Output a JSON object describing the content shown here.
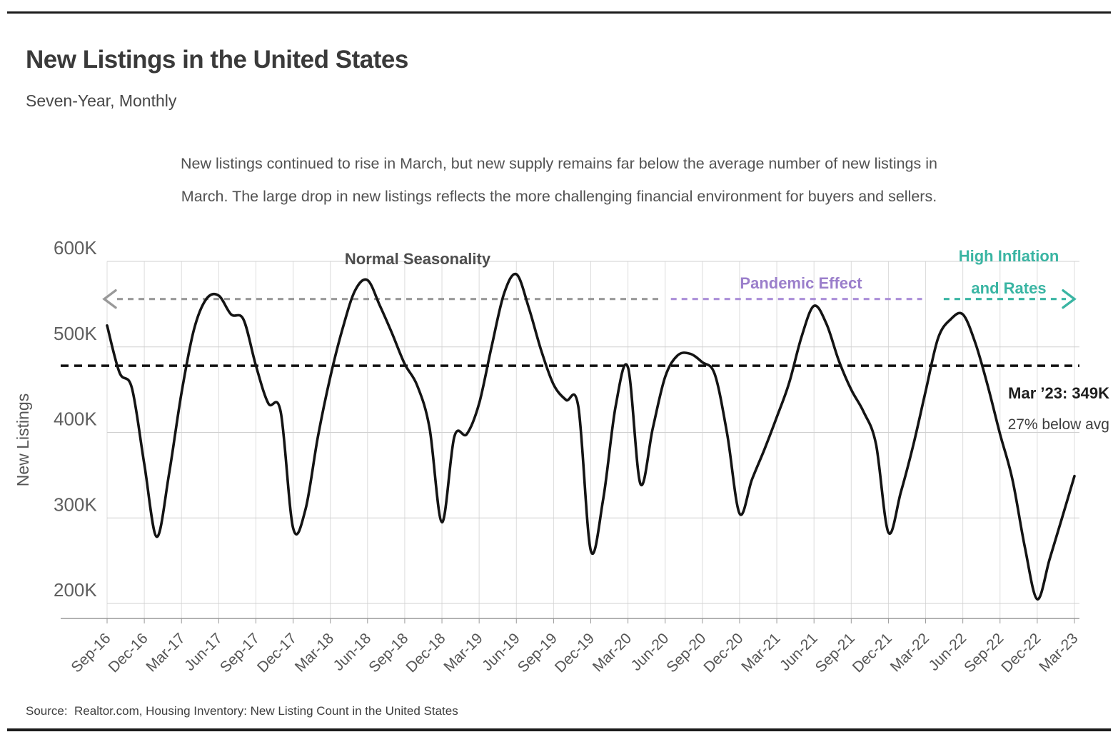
{
  "page": {
    "title": "New Listings in the United States",
    "subtitle": "Seven-Year, Monthly",
    "description_line1": "New listings continued to rise in March, but new supply remains far below the average number of new listings in",
    "description_line2": "March. The large drop in new listings reflects the more challenging financial environment for buyers and sellers.",
    "source": "Source:  Realtor.com, Housing Inventory: New Listing Count in the United States"
  },
  "colors": {
    "line": "#141414",
    "average_line": "#111111",
    "grid_vertical": "#dcdcdc",
    "grid_horizontal": "#d0d0d0",
    "axis": "#999999",
    "tick_text": "#5f5f5f",
    "normal_seasonality": "#999999",
    "pandemic_effect": "#9b7fcb",
    "high_inflation": "#3ab5a3"
  },
  "chart_data": {
    "type": "line",
    "title": "New Listings in the United States",
    "xlabel": "",
    "ylabel": "New Listings",
    "ylim": [
      180,
      620
    ],
    "grid": true,
    "legend": false,
    "yticks": [
      {
        "v": 200,
        "label": "200K"
      },
      {
        "v": 300,
        "label": "300K"
      },
      {
        "v": 400,
        "label": "400K"
      },
      {
        "v": 500,
        "label": "500K"
      },
      {
        "v": 600,
        "label": "600K"
      }
    ],
    "x_tick_every": 3,
    "x_tick_labels": [
      "Sep-16",
      "Dec-16",
      "Mar-17",
      "Jun-17",
      "Sep-17",
      "Dec-17",
      "Mar-18",
      "Jun-18",
      "Sep-18",
      "Dec-18",
      "Mar-19",
      "Jun-19",
      "Sep-19",
      "Dec-19",
      "Mar-20",
      "Jun-20",
      "Sep-20",
      "Dec-20",
      "Mar-21",
      "Jun-21",
      "Sep-21",
      "Dec-21",
      "Mar-22",
      "Jun-22",
      "Sep-22",
      "Dec-22",
      "Mar-23"
    ],
    "series": [
      {
        "name": "New Listings (thousands)",
        "x": [
          "Sep-16",
          "Oct-16",
          "Nov-16",
          "Dec-16",
          "Jan-17",
          "Feb-17",
          "Mar-17",
          "Apr-17",
          "May-17",
          "Jun-17",
          "Jul-17",
          "Aug-17",
          "Sep-17",
          "Oct-17",
          "Nov-17",
          "Dec-17",
          "Jan-18",
          "Feb-18",
          "Mar-18",
          "Apr-18",
          "May-18",
          "Jun-18",
          "Jul-18",
          "Aug-18",
          "Sep-18",
          "Oct-18",
          "Nov-18",
          "Dec-18",
          "Jan-19",
          "Feb-19",
          "Mar-19",
          "Apr-19",
          "May-19",
          "Jun-19",
          "Jul-19",
          "Aug-19",
          "Sep-19",
          "Oct-19",
          "Nov-19",
          "Dec-19",
          "Jan-20",
          "Feb-20",
          "Mar-20",
          "Apr-20",
          "May-20",
          "Jun-20",
          "Jul-20",
          "Aug-20",
          "Sep-20",
          "Oct-20",
          "Nov-20",
          "Dec-20",
          "Jan-21",
          "Feb-21",
          "Mar-21",
          "Apr-21",
          "May-21",
          "Jun-21",
          "Jul-21",
          "Aug-21",
          "Sep-21",
          "Oct-21",
          "Nov-21",
          "Dec-21",
          "Jan-22",
          "Feb-22",
          "Mar-22",
          "Apr-22",
          "May-22",
          "Jun-22",
          "Jul-22",
          "Aug-22",
          "Sep-22",
          "Oct-22",
          "Nov-22",
          "Dec-22",
          "Jan-23",
          "Feb-23",
          "Mar-23"
        ],
        "values": [
          525,
          470,
          452,
          363,
          278,
          352,
          446,
          520,
          556,
          560,
          538,
          532,
          478,
          434,
          424,
          288,
          310,
          395,
          465,
          522,
          566,
          578,
          548,
          515,
          480,
          455,
          405,
          295,
          395,
          398,
          434,
          500,
          562,
          585,
          546,
          496,
          456,
          438,
          430,
          262,
          322,
          430,
          476,
          340,
          405,
          465,
          490,
          492,
          482,
          468,
          398,
          305,
          345,
          380,
          418,
          458,
          512,
          548,
          527,
          484,
          450,
          424,
          386,
          283,
          330,
          385,
          448,
          510,
          532,
          538,
          505,
          455,
          398,
          345,
          266,
          205,
          252,
          300,
          349
        ]
      }
    ],
    "average_line": {
      "value": 478,
      "style": "dashed"
    },
    "annotations": [
      {
        "label": "Normal Seasonality",
        "start": "Sep-16",
        "end": "Jun-20",
        "direction": "left",
        "value": 556,
        "line_color": "#999999",
        "text_color": "#4d4d4d"
      },
      {
        "label": "Pandemic Effect",
        "start": "Jun-20",
        "end": "Mar-22",
        "direction": "none",
        "value": 556,
        "line_color": "#ab8fd8",
        "text_color": "#9b7fcb"
      },
      {
        "label": "High Inflation and Rates",
        "label_lines": [
          "High Inflation",
          "and Rates"
        ],
        "start": "Apr-22",
        "end": "Mar-23",
        "direction": "right",
        "value": 556,
        "line_color": "#3ab5a3",
        "text_color": "#3ab5a3"
      }
    ],
    "point_label": {
      "title": "Mar ’23: 349K",
      "subtitle": "27% below avg"
    }
  }
}
